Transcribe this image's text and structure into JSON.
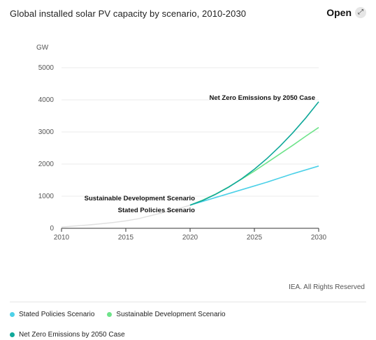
{
  "header": {
    "title": "Global installed solar PV capacity by scenario, 2010-2030",
    "open_label": "Open",
    "open_icon": "expand-arrow-icon"
  },
  "credit": "IEA. All Rights Reserved",
  "chart_data": {
    "type": "line",
    "title": "Global installed solar PV capacity by scenario, 2010-2030",
    "ylabel": "GW",
    "xlabel": "",
    "xlim": [
      2010,
      2030
    ],
    "ylim": [
      0,
      5000
    ],
    "x_ticks": [
      2010,
      2015,
      2020,
      2025,
      2030
    ],
    "y_ticks": [
      0,
      1000,
      2000,
      3000,
      4000,
      5000
    ],
    "grid": "horizontal",
    "legend_position": "bottom",
    "historical": {
      "color": "#e0e0e0",
      "points": [
        [
          2010,
          40
        ],
        [
          2011,
          70
        ],
        [
          2012,
          100
        ],
        [
          2013,
          140
        ],
        [
          2014,
          180
        ],
        [
          2015,
          230
        ],
        [
          2016,
          300
        ],
        [
          2017,
          400
        ],
        [
          2018,
          500
        ],
        [
          2019,
          600
        ],
        [
          2020,
          720
        ]
      ]
    },
    "series": [
      {
        "name": "Stated Policies Scenario",
        "color": "#4dd1e8",
        "points": [
          [
            2020,
            720
          ],
          [
            2021,
            840
          ],
          [
            2022,
            960
          ],
          [
            2023,
            1080
          ],
          [
            2024,
            1200
          ],
          [
            2025,
            1320
          ],
          [
            2026,
            1440
          ],
          [
            2027,
            1570
          ],
          [
            2028,
            1700
          ],
          [
            2029,
            1820
          ],
          [
            2030,
            1940
          ]
        ]
      },
      {
        "name": "Sustainable Development Scenario",
        "color": "#6ee38a",
        "points": [
          [
            2020,
            720
          ],
          [
            2021,
            880
          ],
          [
            2022,
            1070
          ],
          [
            2023,
            1290
          ],
          [
            2024,
            1530
          ],
          [
            2025,
            1780
          ],
          [
            2026,
            2050
          ],
          [
            2027,
            2320
          ],
          [
            2028,
            2590
          ],
          [
            2029,
            2870
          ],
          [
            2030,
            3140
          ]
        ]
      },
      {
        "name": "Net Zero Emissions by 2050 Case",
        "color": "#10a89a",
        "points": [
          [
            2020,
            720
          ],
          [
            2021,
            870
          ],
          [
            2022,
            1060
          ],
          [
            2023,
            1280
          ],
          [
            2024,
            1540
          ],
          [
            2025,
            1840
          ],
          [
            2026,
            2180
          ],
          [
            2027,
            2560
          ],
          [
            2028,
            2980
          ],
          [
            2029,
            3440
          ],
          [
            2030,
            3940
          ]
        ]
      }
    ],
    "annotations": [
      {
        "text": "Net Zero Emissions by 2050 Case"
      },
      {
        "text": "Sustainable Development Scenario"
      },
      {
        "text": "Stated Policies Scenario"
      }
    ]
  }
}
